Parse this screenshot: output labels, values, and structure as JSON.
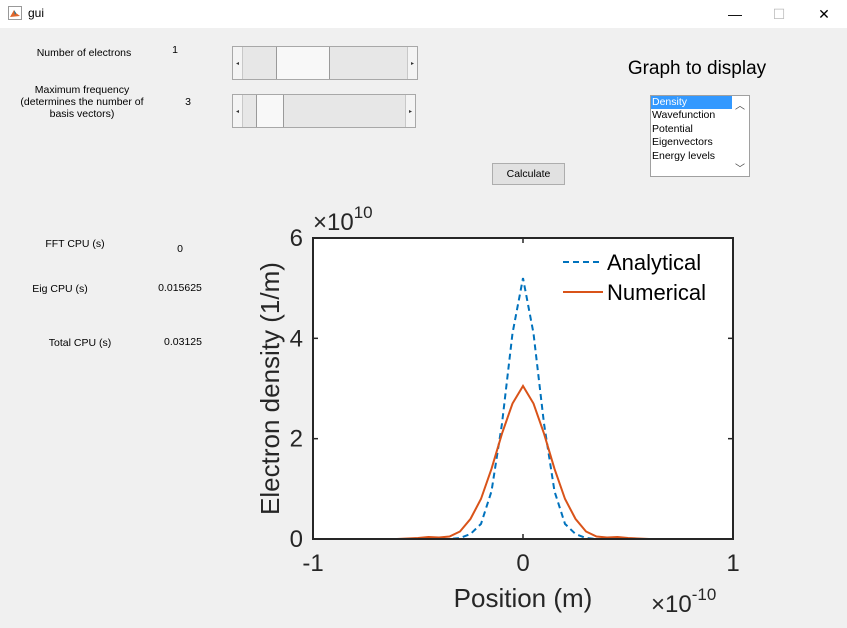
{
  "window": {
    "title": "gui",
    "minimize_glyph": "—",
    "maximize_glyph": "☐",
    "close_glyph": "✕"
  },
  "controls": {
    "electrons_label": "Number of electrons",
    "electrons_value": "1",
    "electrons_slider_level": 0.3,
    "frequency_label_line1": "Maximum frequency",
    "frequency_label_line2": "(determines the number of",
    "frequency_label_line3": "basis vectors)",
    "frequency_value": "3",
    "frequency_slider_level": 0.1,
    "calculate_label": "Calculate"
  },
  "graph_select": {
    "title": "Graph to display",
    "options": [
      "Density",
      "Wavefunction",
      "Potential",
      "Eigenvectors",
      "Energy levels"
    ],
    "selected": "Density"
  },
  "timings": {
    "fft_label": "FFT CPU (s)",
    "fft_value": "0",
    "eig_label": "Eig CPU (s)",
    "eig_value": "0.015625",
    "total_label": "Total CPU (s)",
    "total_value": "0.03125"
  },
  "chart_data": {
    "type": "line",
    "title": "",
    "xlabel": "Position (m)",
    "ylabel": "Electron density (1/m)",
    "x_exponent_label": "×10",
    "x_exponent": "-10",
    "y_exponent_label": "×10",
    "y_exponent": "10",
    "xlim": [
      -1,
      1
    ],
    "ylim": [
      0,
      6
    ],
    "xticks": [
      "-1",
      "0",
      "1"
    ],
    "yticks": [
      "0",
      "2",
      "4",
      "6"
    ],
    "legend_position": "top-right",
    "grid": false,
    "series": [
      {
        "name": "Analytical",
        "color": "#0072bd",
        "style": "dashed",
        "x": [
          -1.0,
          -0.5,
          -0.35,
          -0.3,
          -0.25,
          -0.2,
          -0.15,
          -0.1,
          -0.05,
          0.0,
          0.05,
          0.1,
          0.15,
          0.2,
          0.25,
          0.3,
          0.35,
          0.5,
          1.0
        ],
        "y": [
          0,
          0,
          0.0,
          0.02,
          0.1,
          0.3,
          0.95,
          2.3,
          4.1,
          5.2,
          4.1,
          2.3,
          0.95,
          0.3,
          0.1,
          0.02,
          0.0,
          0,
          0
        ]
      },
      {
        "name": "Numerical",
        "color": "#d95319",
        "style": "solid",
        "x": [
          -1.0,
          -0.6,
          -0.5,
          -0.45,
          -0.4,
          -0.35,
          -0.3,
          -0.25,
          -0.2,
          -0.15,
          -0.1,
          -0.05,
          0.0,
          0.05,
          0.1,
          0.15,
          0.2,
          0.25,
          0.3,
          0.35,
          0.4,
          0.45,
          0.5,
          0.6,
          1.0
        ],
        "y": [
          0,
          0,
          0.02,
          0.04,
          0.03,
          0.05,
          0.15,
          0.4,
          0.8,
          1.4,
          2.1,
          2.7,
          3.05,
          2.7,
          2.1,
          1.4,
          0.8,
          0.4,
          0.15,
          0.05,
          0.03,
          0.04,
          0.02,
          0,
          0
        ]
      }
    ]
  }
}
